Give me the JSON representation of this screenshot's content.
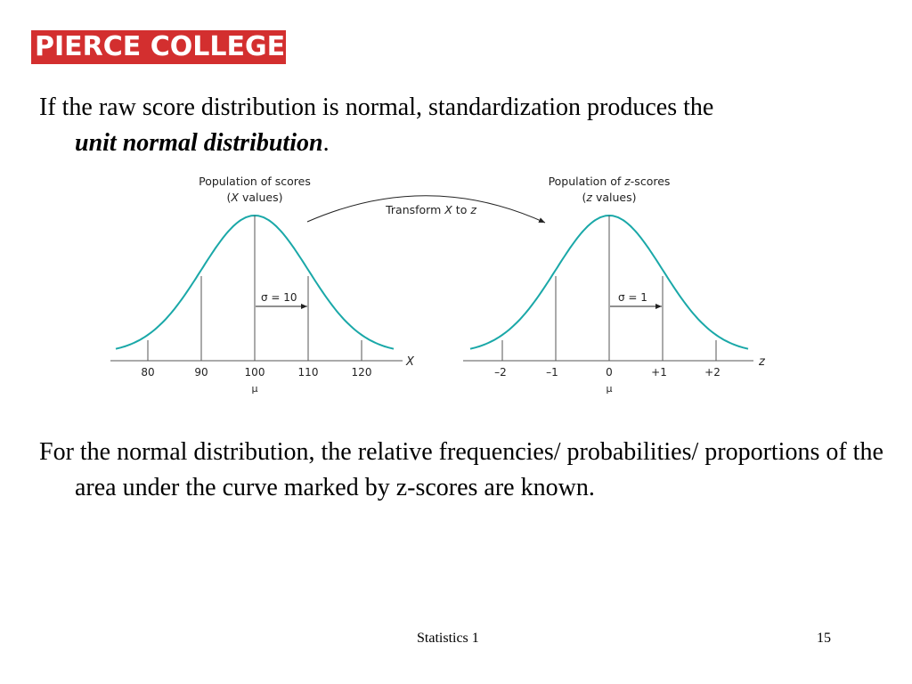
{
  "logo": {
    "text": "PIERCE COLLEGE",
    "color": "#d32f2f"
  },
  "paragraph1": {
    "text": "If the raw score distribution is normal, standardization produces the",
    "emphasis": "unit normal distribution",
    "end": "."
  },
  "figure": {
    "left": {
      "title_line1": "Population of scores",
      "title_line2_var": "X",
      "title_line2_rest": " values)",
      "sigma_label": "σ = 10",
      "axis_var": "X",
      "ticks": [
        "80",
        "90",
        "100",
        "110",
        "120"
      ],
      "mu": "μ"
    },
    "arrow_label_pre": "Transform ",
    "arrow_label_x": "X",
    "arrow_label_mid": " to ",
    "arrow_label_z": "z",
    "right": {
      "title_line1_pre": "Population of ",
      "title_line1_var": "z",
      "title_line1_post": "-scores",
      "title_line2_var": "z",
      "title_line2_rest": " values)",
      "sigma_label": "σ = 1",
      "axis_var": "z",
      "ticks": [
        "–2",
        "–1",
        "0",
        "+1",
        "+2"
      ],
      "mu": "μ"
    },
    "curve_color": "#1aa8a8"
  },
  "paragraph2": {
    "text": "For the normal distribution, the relative frequencies/ probabilities/ proportions of the area under the curve marked by z-scores are known."
  },
  "footer": {
    "title": "Statistics 1",
    "page": "15"
  }
}
